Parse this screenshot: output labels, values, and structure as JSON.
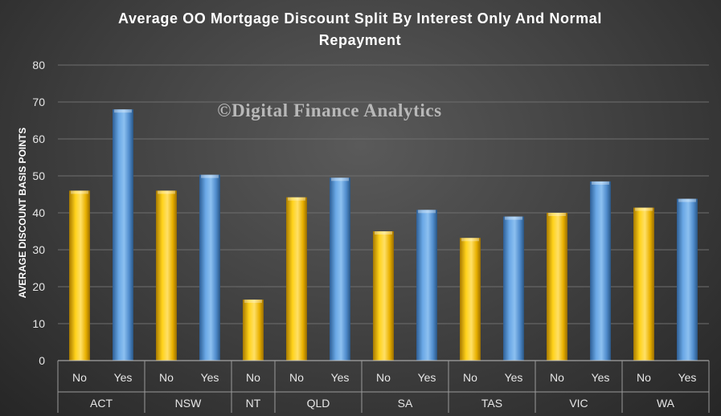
{
  "chart_data": {
    "type": "bar",
    "title": "Average OO Mortgage Discount Split By Interest Only And Normal Repayment",
    "title_lines": [
      "Average OO Mortgage Discount Split By Interest Only And Normal",
      "Repayment"
    ],
    "ylabel": "AVERAGE DISCOUNT BASIS POINTS",
    "xlabel": "",
    "ylim": [
      0,
      80
    ],
    "yticks": [
      0,
      10,
      20,
      30,
      40,
      50,
      60,
      70,
      80
    ],
    "grid": true,
    "legend": "none",
    "watermark": "©Digital Finance Analytics",
    "groups": [
      "ACT",
      "NSW",
      "NT",
      "QLD",
      "SA",
      "TAS",
      "VIC",
      "WA"
    ],
    "bars": [
      {
        "group": "ACT",
        "label": "No",
        "value": 46
      },
      {
        "group": "ACT",
        "label": "Yes",
        "value": 68
      },
      {
        "group": "NSW",
        "label": "No",
        "value": 46
      },
      {
        "group": "NSW",
        "label": "Yes",
        "value": 50.3
      },
      {
        "group": "NT",
        "label": "No",
        "value": 16.5
      },
      {
        "group": "QLD",
        "label": "No",
        "value": 44.2
      },
      {
        "group": "QLD",
        "label": "Yes",
        "value": 49.5
      },
      {
        "group": "SA",
        "label": "No",
        "value": 35
      },
      {
        "group": "SA",
        "label": "Yes",
        "value": 40.8
      },
      {
        "group": "TAS",
        "label": "No",
        "value": 33.2
      },
      {
        "group": "TAS",
        "label": "Yes",
        "value": 39
      },
      {
        "group": "VIC",
        "label": "No",
        "value": 40
      },
      {
        "group": "VIC",
        "label": "Yes",
        "value": 48.5
      },
      {
        "group": "WA",
        "label": "No",
        "value": 41.4
      },
      {
        "group": "WA",
        "label": "Yes",
        "value": 43.8
      }
    ],
    "colors": {
      "No": "#f5c000",
      "Yes": "#5b9bd5"
    }
  }
}
